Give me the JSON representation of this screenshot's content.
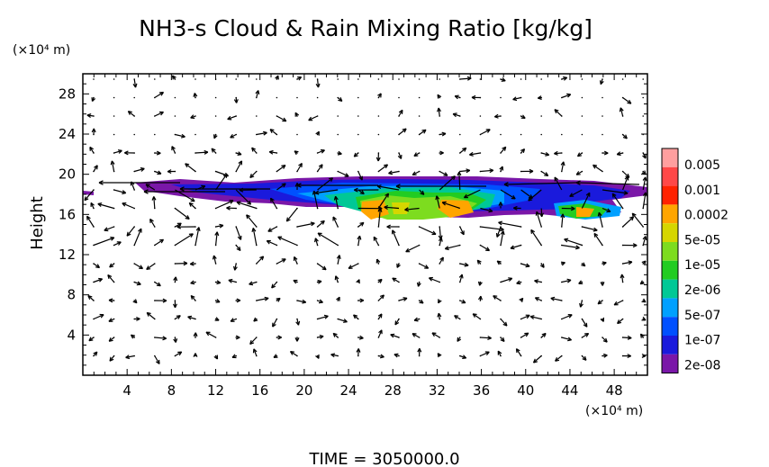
{
  "chart_data": {
    "type": "heatmap",
    "title": "NH3-s Cloud & Rain Mixing Ratio [kg/kg]",
    "ylabel": "Height",
    "x_unit": "(×10⁴ m)",
    "y_unit": "(×10⁴ m)",
    "xlim": [
      0,
      51
    ],
    "ylim": [
      0,
      30
    ],
    "x_ticks": [
      "4",
      "8",
      "12",
      "16",
      "20",
      "24",
      "28",
      "32",
      "36",
      "40",
      "44",
      "48"
    ],
    "y_ticks": [
      "4",
      "8",
      "12",
      "16",
      "20",
      "24",
      "28"
    ],
    "colorbar": {
      "labels": [
        "0.005",
        "0.001",
        "0.0002",
        "5e-05",
        "1e-05",
        "2e-06",
        "5e-07",
        "1e-07",
        "2e-08"
      ],
      "colors": [
        "#ff9f9f",
        "#ff4848",
        "#ff2200",
        "#ffa500",
        "#d6d600",
        "#7ddc1f",
        "#22cc22",
        "#00c896",
        "#00a0ff",
        "#0050ff",
        "#1a1adc",
        "#7a17a8"
      ]
    },
    "footer": "TIME = 3050000.0"
  }
}
